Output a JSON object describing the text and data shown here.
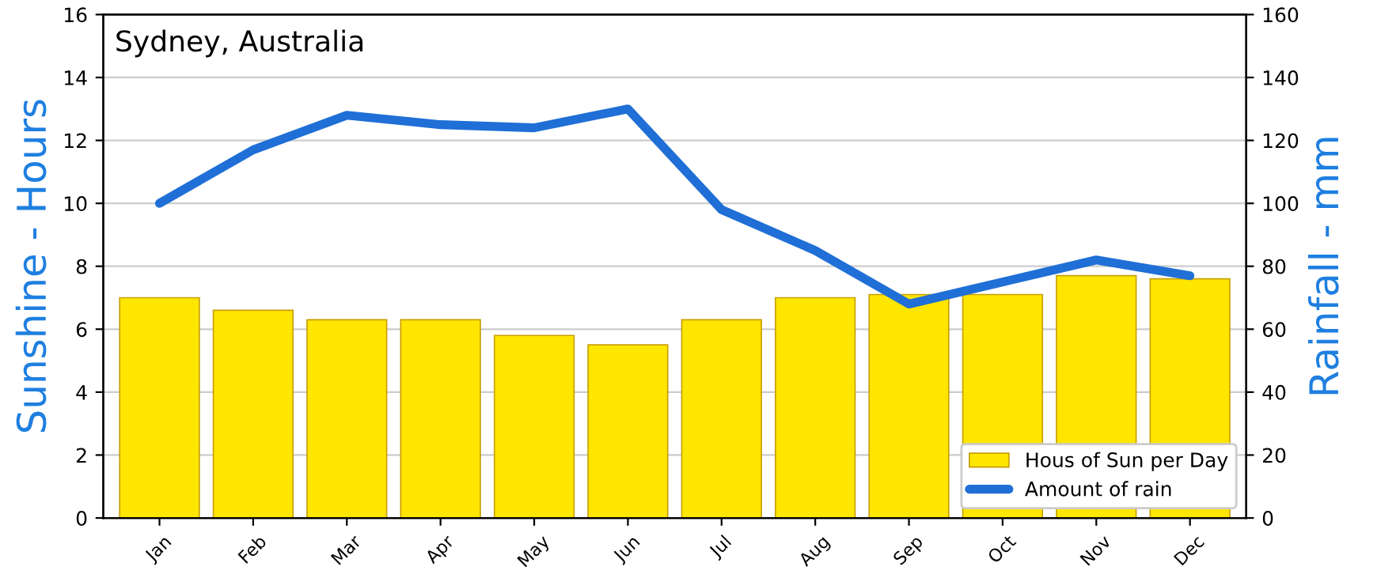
{
  "chart_data": {
    "type": "bar",
    "title": "Sydney, Australia",
    "ylabel": "Sunshine - Hours",
    "y2label": "Rainfall - mm",
    "categories": [
      "Jan",
      "Feb",
      "Mar",
      "Apr",
      "May",
      "Jun",
      "Jul",
      "Aug",
      "Sep",
      "Oct",
      "Nov",
      "Dec"
    ],
    "series": [
      {
        "name": "Hous of Sun per Day",
        "color": "#ffe600",
        "values": [
          7.0,
          6.6,
          6.3,
          6.3,
          5.8,
          5.5,
          6.3,
          7.0,
          7.1,
          7.1,
          7.7,
          7.6
        ]
      },
      {
        "name": "Amount of rain",
        "type": "line",
        "axis": "y2",
        "color": "#1f6fd6",
        "values": [
          100,
          117,
          128,
          125,
          124,
          130,
          98,
          85,
          68,
          75,
          82,
          77
        ]
      }
    ],
    "ylim": [
      0,
      16
    ],
    "yticks": [
      0,
      2,
      4,
      6,
      8,
      10,
      12,
      14,
      16
    ],
    "y2lim": [
      0,
      160
    ],
    "y2ticks": [
      0,
      20,
      40,
      60,
      80,
      100,
      120,
      140,
      160
    ],
    "grid": "y",
    "legend": "bottom right",
    "line_style": "solid",
    "marker": "none"
  }
}
